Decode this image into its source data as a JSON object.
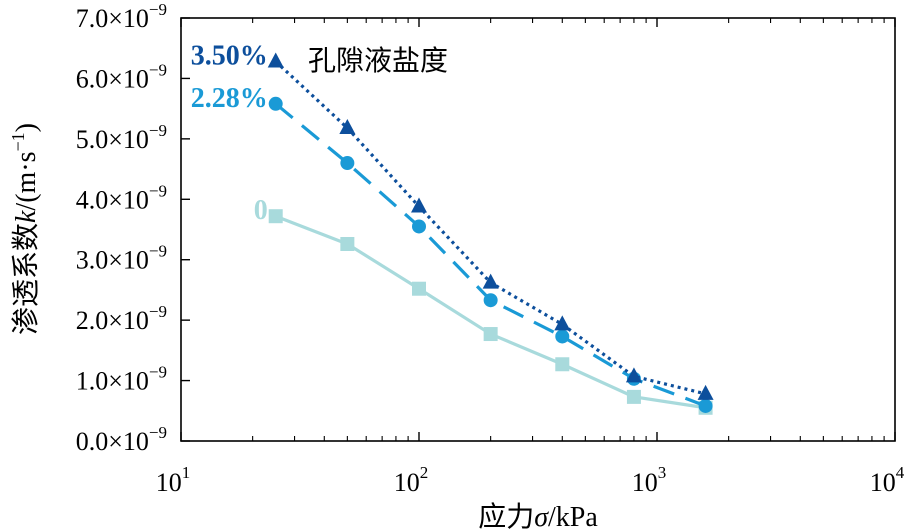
{
  "chart_data": {
    "type": "line",
    "x_scale": "log",
    "xlim": [
      10,
      10000
    ],
    "ylim": [
      0,
      7e-09
    ],
    "x_ticks": [
      {
        "base": "10",
        "exp": "1"
      },
      {
        "base": "10",
        "exp": "2"
      },
      {
        "base": "10",
        "exp": "3"
      },
      {
        "base": "10",
        "exp": "4"
      }
    ],
    "y_ticks": [
      {
        "value": 0,
        "mantissa": "0.0×10",
        "exp": "−9"
      },
      {
        "value": 1e-09,
        "mantissa": "1.0×10",
        "exp": "−9"
      },
      {
        "value": 2e-09,
        "mantissa": "2.0×10",
        "exp": "−9"
      },
      {
        "value": 3e-09,
        "mantissa": "3.0×10",
        "exp": "−9"
      },
      {
        "value": 4e-09,
        "mantissa": "4.0×10",
        "exp": "−9"
      },
      {
        "value": 5e-09,
        "mantissa": "5.0×10",
        "exp": "−9"
      },
      {
        "value": 6e-09,
        "mantissa": "6.0×10",
        "exp": "−9"
      },
      {
        "value": 7e-09,
        "mantissa": "7.0×10",
        "exp": "−9"
      }
    ],
    "xlabel": {
      "prefix": "应力",
      "symbol": "σ",
      "unit": "/kPa"
    },
    "ylabel": {
      "prefix": "渗透系数",
      "symbol": "k",
      "unit_open": "/(m·s",
      "unit_exp": "−1",
      "unit_close": ")"
    },
    "legend_title": "孔隙液盐度",
    "series": [
      {
        "name": "0",
        "color": "#a8dadc",
        "marker": "square",
        "line": "solid",
        "x": [
          25,
          50,
          100,
          200,
          400,
          800,
          1600
        ],
        "y": [
          3.72e-09,
          3.26e-09,
          2.52e-09,
          1.77e-09,
          1.27e-09,
          7.3e-10,
          5.5e-10
        ]
      },
      {
        "name": "2.28%",
        "color": "#1a9ad6",
        "marker": "circle",
        "line": "dashed",
        "x": [
          25,
          50,
          100,
          200,
          400,
          800,
          1600
        ],
        "y": [
          5.58e-09,
          4.6e-09,
          3.55e-09,
          2.33e-09,
          1.73e-09,
          1.03e-09,
          5.8e-10
        ]
      },
      {
        "name": "3.50%",
        "color": "#0d4f9c",
        "marker": "triangle",
        "line": "dotted",
        "x": [
          25,
          50,
          100,
          200,
          400,
          800,
          1600
        ],
        "y": [
          6.28e-09,
          5.18e-09,
          3.88e-09,
          2.62e-09,
          1.93e-09,
          1.07e-09,
          7.8e-10
        ]
      }
    ]
  }
}
